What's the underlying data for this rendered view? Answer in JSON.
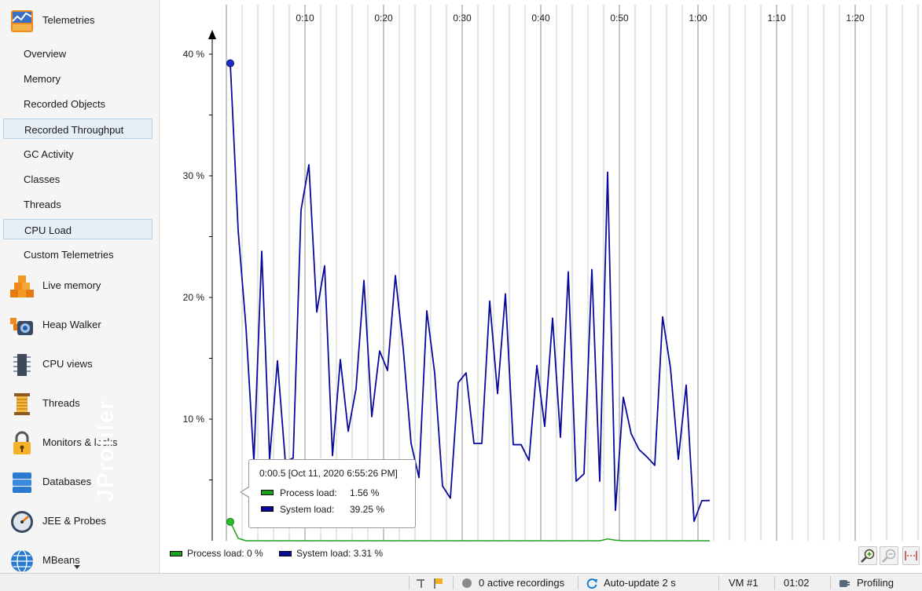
{
  "sidebar": {
    "sections": [
      {
        "label": "Telemetries",
        "icon": "telemetries-icon"
      },
      {
        "label": "Live memory",
        "icon": "live-memory-icon"
      },
      {
        "label": "Heap Walker",
        "icon": "heap-walker-icon"
      },
      {
        "label": "CPU views",
        "icon": "cpu-views-icon"
      },
      {
        "label": "Threads",
        "icon": "threads-icon"
      },
      {
        "label": "Monitors & locks",
        "icon": "lock-icon"
      },
      {
        "label": "Databases",
        "icon": "database-icon"
      },
      {
        "label": "JEE & Probes",
        "icon": "gauge-icon"
      },
      {
        "label": "MBeans",
        "icon": "globe-icon"
      }
    ],
    "telemetries": [
      "Overview",
      "Memory",
      "Recorded Objects",
      "Recorded Throughput",
      "GC Activity",
      "Classes",
      "Threads",
      "CPU Load",
      "Custom Telemetries"
    ],
    "selected": [
      "Recorded Throughput",
      "CPU Load"
    ],
    "watermark": "JProfiler"
  },
  "chart_data": {
    "type": "line",
    "x_ticks": [
      "0:10",
      "0:20",
      "0:30",
      "0:40",
      "0:50",
      "1:00",
      "1:10",
      "1:20"
    ],
    "y_ticks": [
      "10 %",
      "20 %",
      "30 %",
      "40 %"
    ],
    "ylim": [
      0,
      40
    ],
    "grid": true,
    "series": [
      {
        "name": "System load",
        "color": "#0a0a9a",
        "x": [
          0.5,
          1.5,
          2.5,
          3.5,
          4.5,
          5.5,
          6.5,
          7.5,
          8.5,
          9.5,
          10.5,
          11.5,
          12.5,
          13.5,
          14.5,
          15.5,
          16.5,
          17.5,
          18.5,
          19.5,
          20.5,
          21.5,
          22.5,
          23.5,
          24.5,
          25.5,
          26.5,
          27.5,
          28.5,
          29.5,
          30.5,
          31.5,
          32.5,
          33.5,
          34.5,
          35.5,
          36.5,
          37.5,
          38.5,
          39.5,
          40.5,
          41.5,
          42.5,
          43.5,
          44.5,
          45.5,
          46.5,
          47.5,
          48.5,
          49.5,
          50.5,
          51.5,
          52.5,
          53.5,
          54.5,
          55.5,
          56.5,
          57.5,
          58.5,
          59.5,
          60.5,
          61.5
        ],
        "values": [
          39.25,
          25.5,
          17.5,
          6.5,
          23.8,
          6.7,
          14.8,
          6.5,
          6.8,
          27.2,
          30.9,
          18.8,
          22.6,
          7.0,
          14.9,
          9.0,
          12.5,
          21.4,
          10.2,
          15.6,
          14.0,
          21.8,
          15.8,
          8.0,
          5.2,
          18.9,
          13.8,
          4.5,
          3.5,
          13.0,
          13.8,
          8.0,
          8.0,
          19.7,
          12.1,
          20.3,
          7.9,
          7.9,
          6.6,
          14.4,
          9.4,
          18.3,
          8.5,
          22.1,
          4.9,
          5.5,
          22.3,
          4.9,
          30.3,
          2.5,
          11.8,
          8.8,
          7.5,
          6.9,
          6.2,
          18.4,
          14.2,
          6.7,
          12.8,
          1.6,
          3.3,
          3.31
        ]
      },
      {
        "name": "Process load",
        "color": "#1aa01a",
        "x": [
          0.5,
          1.5,
          2.5,
          47.5,
          48.5,
          49.5,
          50.5,
          61.5
        ],
        "values": [
          1.56,
          0.2,
          0.0,
          0.0,
          0.15,
          0.05,
          0.0,
          0.0
        ]
      }
    ]
  },
  "tooltip": {
    "title": "0:00.5 [Oct 11, 2020 6:55:26 PM]",
    "rows": [
      {
        "name": "Process load:",
        "value": "1.56 %",
        "color": "#1aa01a"
      },
      {
        "name": "System load:",
        "value": "39.25 %",
        "color": "#0a0a9a"
      }
    ]
  },
  "legend": [
    {
      "label": "Process load: 0 %",
      "color": "#1aa01a"
    },
    {
      "label": "System load: 3.31 %",
      "color": "#0a0a9a"
    }
  ],
  "toolbar": {
    "zoom_in": "zoom-in-icon",
    "zoom_out": "zoom-out-icon",
    "fit": "fit-icon"
  },
  "status": {
    "recordings": "0 active recordings",
    "auto_update": "Auto-update 2 s",
    "vm": "VM #1",
    "time": "01:02",
    "mode": "Profiling"
  }
}
